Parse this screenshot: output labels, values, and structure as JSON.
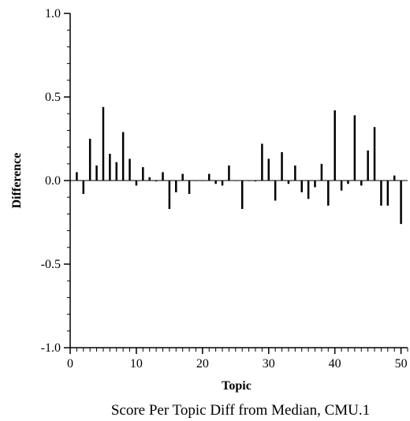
{
  "chart_data": {
    "type": "bar",
    "title": "",
    "caption": "Score Per Topic Diff from Median, CMU.1",
    "xlabel": "Topic",
    "ylabel": "Difference",
    "xlim": [
      0,
      51
    ],
    "ylim": [
      -1.0,
      1.0
    ],
    "x_ticks": [
      0,
      10,
      20,
      30,
      40,
      50
    ],
    "x_tick_labels": [
      "0",
      "10",
      "20",
      "30",
      "40",
      "50"
    ],
    "y_ticks": [
      1.0,
      0.5,
      0.0,
      -0.5,
      -1.0
    ],
    "y_tick_labels": [
      "1.0",
      "0.5",
      "0.0",
      "-0.5",
      "-1.0"
    ],
    "grid": false,
    "legend": "none",
    "colors": {
      "bar": "#000000",
      "axis": "#000000",
      "background": "#ffffff"
    },
    "x": [
      1,
      2,
      3,
      4,
      5,
      6,
      7,
      8,
      9,
      10,
      11,
      12,
      13,
      14,
      15,
      16,
      17,
      18,
      19,
      20,
      21,
      22,
      23,
      24,
      25,
      26,
      27,
      28,
      29,
      30,
      31,
      32,
      33,
      34,
      35,
      36,
      37,
      38,
      39,
      40,
      41,
      42,
      43,
      44,
      45,
      46,
      47,
      48,
      49,
      50
    ],
    "values": [
      0.05,
      -0.08,
      0.25,
      0.09,
      0.44,
      0.16,
      0.11,
      0.29,
      0.13,
      -0.03,
      0.08,
      0.02,
      -0.005,
      0.05,
      -0.17,
      -0.07,
      0.04,
      -0.08,
      0.0,
      0.0,
      0.04,
      -0.02,
      -0.03,
      0.09,
      0.0,
      -0.17,
      0.0,
      -0.005,
      0.22,
      0.13,
      -0.12,
      0.17,
      -0.02,
      0.09,
      -0.07,
      -0.11,
      -0.04,
      0.1,
      -0.15,
      0.42,
      -0.06,
      -0.02,
      0.39,
      -0.03,
      0.18,
      0.32,
      -0.15,
      -0.15,
      0.03,
      -0.26
    ]
  }
}
